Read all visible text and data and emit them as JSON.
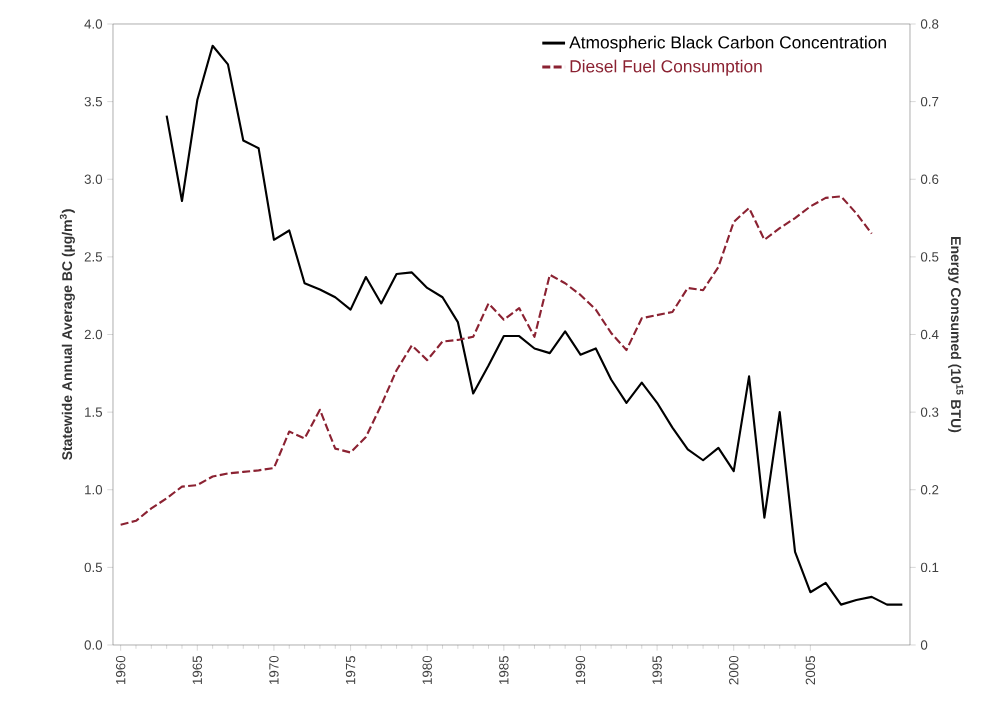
{
  "chart_data": {
    "type": "line",
    "xlabel": null,
    "ylabel": "Statewide Annual Average BC (µg/m$^{3}$)",
    "y2label": "Energy Consumed (10$^{15}$ BTU)",
    "xlim": [
      1959.5,
      2011.5
    ],
    "xticks": [
      1960,
      1965,
      1970,
      1975,
      1980,
      1985,
      1990,
      1995,
      2000,
      2005
    ],
    "ylim": [
      0,
      4
    ],
    "yticks": [
      {
        "value": 0,
        "label": "0.0"
      },
      {
        "value": 0.5,
        "label": "0.5"
      },
      {
        "value": 1,
        "label": "1.0"
      },
      {
        "value": 1.5,
        "label": "1.5"
      },
      {
        "value": 2,
        "label": "2.0"
      },
      {
        "value": 2.5,
        "label": "2.5"
      },
      {
        "value": 3,
        "label": "3.0"
      },
      {
        "value": 3.5,
        "label": "3.5"
      },
      {
        "value": 4,
        "label": "4.0"
      }
    ],
    "y2lim": [
      0,
      0.8
    ],
    "y2ticks": [
      0,
      0.1,
      0.2,
      0.3,
      0.4,
      0.5,
      0.6,
      0.7,
      0.8
    ],
    "legend": "top right",
    "grid": false,
    "series": [
      {
        "name": "Atmospheric Black Carbon Concentration",
        "color": "#000000",
        "line_style": "solid",
        "x": [
          1963,
          1964,
          1965,
          1966,
          1967,
          1968,
          1969,
          1970,
          1971,
          1972,
          1973,
          1974,
          1975,
          1976,
          1977,
          1978,
          1979,
          1980,
          1981,
          1982,
          1983,
          1984,
          1985,
          1986,
          1987,
          1988,
          1989,
          1990,
          1991,
          1992,
          1993,
          1994,
          1995,
          1996,
          1997,
          1998,
          1999,
          2000,
          2001,
          2002,
          2003,
          2004,
          2005,
          2006,
          2007,
          2008,
          2009,
          2010,
          2011
        ],
        "values": [
          3.41,
          2.86,
          3.51,
          3.86,
          3.74,
          3.25,
          3.2,
          2.61,
          2.67,
          2.33,
          2.29,
          2.24,
          2.16,
          2.37,
          2.2,
          2.39,
          2.4,
          2.3,
          2.24,
          2.08,
          1.62,
          1.8,
          1.99,
          1.99,
          1.91,
          1.88,
          2.02,
          1.87,
          1.91,
          1.71,
          1.56,
          1.69,
          1.56,
          1.4,
          1.26,
          1.19,
          1.27,
          1.12,
          1.73,
          0.82,
          1.5,
          0.6,
          0.34,
          0.4,
          0.26,
          0.29,
          0.31,
          0.26,
          0.26
        ]
      },
      {
        "name": "Diesel Fuel Consumption",
        "color": "#8b2232",
        "line_style": "dashed",
        "axis": "y2",
        "x": [
          1960,
          1961,
          1962,
          1963,
          1964,
          1965,
          1966,
          1967,
          1968,
          1969,
          1970,
          1971,
          1972,
          1973,
          1974,
          1975,
          1976,
          1977,
          1978,
          1979,
          1980,
          1981,
          1982,
          1983,
          1984,
          1985,
          1986,
          1987,
          1988,
          1989,
          1990,
          1991,
          1992,
          1993,
          1994,
          1995,
          1996,
          1997,
          1998,
          1999,
          2000,
          2001,
          2002,
          2003,
          2004,
          2005,
          2006,
          2007,
          2008,
          2009
        ],
        "values": [
          0.155,
          0.16,
          0.176,
          0.189,
          0.204,
          0.206,
          0.217,
          0.221,
          0.223,
          0.225,
          0.228,
          0.275,
          0.266,
          0.303,
          0.253,
          0.248,
          0.268,
          0.309,
          0.354,
          0.386,
          0.367,
          0.391,
          0.393,
          0.397,
          0.44,
          0.419,
          0.434,
          0.397,
          0.477,
          0.466,
          0.451,
          0.432,
          0.402,
          0.38,
          0.421,
          0.425,
          0.429,
          0.46,
          0.457,
          0.487,
          0.545,
          0.563,
          0.522,
          0.537,
          0.55,
          0.565,
          0.576,
          0.578,
          0.556,
          0.53
        ]
      }
    ]
  }
}
